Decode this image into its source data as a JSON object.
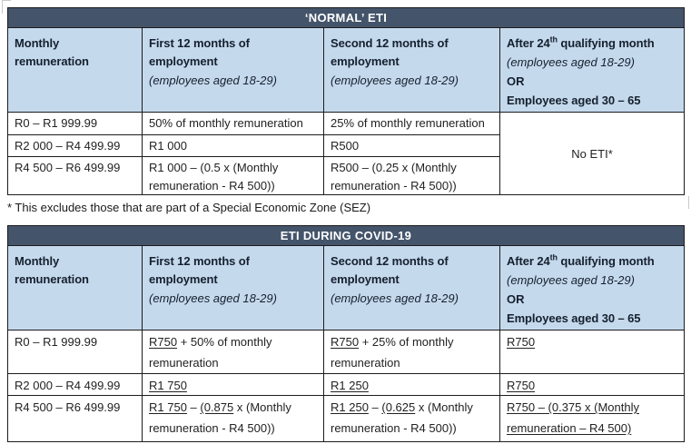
{
  "colors": {
    "title_bar_bg": "#44546A",
    "title_bar_text": "#FFFFFF",
    "header_cell_bg": "#C5D9ED",
    "or_red": "#E3222B",
    "table_border": "#1C1C1C"
  },
  "normal_table": {
    "title": "‘NORMAL’ ETI",
    "headers": {
      "monthly": "Monthly remuneration",
      "first12_bold": "First 12 months of employment",
      "first12_italic": "(employees aged 18-29)",
      "second12_bold": "Second 12 months of employment",
      "second12_italic": "(employees aged 18-29)",
      "after24_pre": "After 24",
      "after24_sup": "th",
      "after24_post": " qualifying month",
      "after24_italic": "(employees aged 18-29)",
      "or_label": "OR",
      "aged_30_65": "Employees aged 30 – 65"
    },
    "rows": [
      {
        "range": "R0 – R1 999.99",
        "first12": "50% of monthly remuneration",
        "second12": "25% of monthly remuneration"
      },
      {
        "range": "R2 000 – R4 499.99",
        "first12": "R1 000",
        "second12": "R500"
      },
      {
        "range": "R4 500 – R6 499.99",
        "first12": "R1 000 – (0.5 x (Monthly remuneration - R4 500))",
        "second12": "R500 – (0.25 x (Monthly remuneration - R4 500))"
      }
    ],
    "after24_merged": "No ETI*",
    "footnote": "* This excludes those that are part of a Special Economic Zone (SEZ)"
  },
  "covid_table": {
    "title": "ETI DURING COVID-19",
    "headers": {
      "monthly": "Monthly remuneration",
      "first12_bold": "First 12 months of employment",
      "first12_italic": "(employees aged 18-29)",
      "second12_bold": "Second 12 months of employment",
      "second12_italic": "(employees aged 18-29)",
      "after24_pre": "After 24",
      "after24_sup": "th",
      "after24_post": " qualifying month",
      "after24_italic": "(employees aged 18-29)",
      "or_label": "OR",
      "aged_30_65": "Employees aged 30 – 65"
    },
    "rows": [
      {
        "range": "R0 – R1 999.99",
        "first12": [
          {
            "t": "R750",
            "u": true
          },
          {
            "t": " + 50% of monthly remuneration"
          }
        ],
        "second12": [
          {
            "t": "R750",
            "u": true
          },
          {
            "t": " + 25% of monthly remuneration"
          }
        ],
        "after24": [
          {
            "t": "R750",
            "u": true
          }
        ]
      },
      {
        "range": "R2 000 – R4 499.99",
        "first12": [
          {
            "t": "R1 750",
            "u": true
          }
        ],
        "second12": [
          {
            "t": "R1 250",
            "u": true
          }
        ],
        "after24": [
          {
            "t": "R750",
            "u": true
          }
        ]
      },
      {
        "range": "R4 500 – R6 499.99",
        "first12": [
          {
            "t": "R1 750",
            "u": true
          },
          {
            "t": " – "
          },
          {
            "t": "(0.875",
            "u": true
          },
          {
            "t": " x (Monthly remuneration - R4 500))"
          }
        ],
        "second12": [
          {
            "t": "R1 250",
            "u": true
          },
          {
            "t": " – "
          },
          {
            "t": "(0.625",
            "u": true
          },
          {
            "t": " x (Monthly remuneration - R4 500))"
          }
        ],
        "after24": [
          {
            "t": "R750 – (0.375 x (Monthly remuneration – R4 500)",
            "u": true
          }
        ]
      }
    ]
  }
}
